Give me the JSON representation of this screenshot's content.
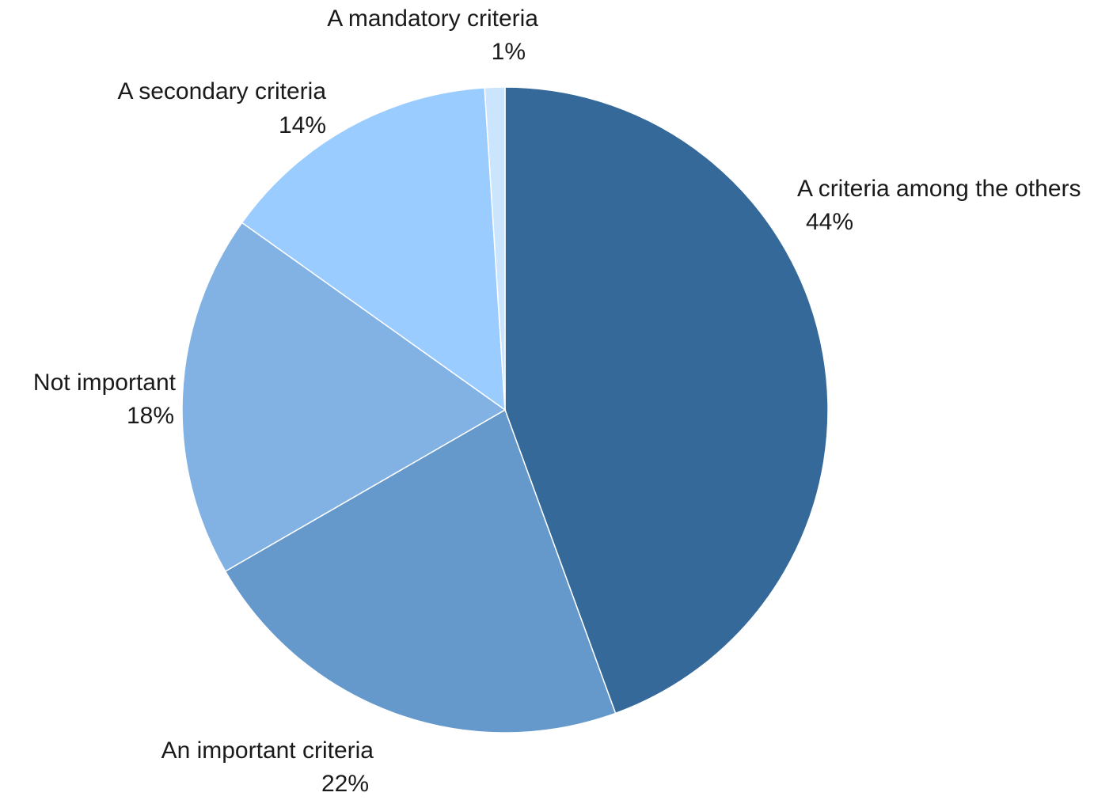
{
  "chart_data": {
    "type": "pie",
    "title": "",
    "slices": [
      {
        "label": "A criteria among the others",
        "value": 44,
        "value_label": "44%",
        "color": "#356999"
      },
      {
        "label": "An important criteria",
        "value": 22,
        "value_label": "22%",
        "color": "#6699CB"
      },
      {
        "label": "Not important",
        "value": 18,
        "value_label": "18%",
        "color": "#81B2E3"
      },
      {
        "label": "A secondary criteria",
        "value": 14,
        "value_label": "14%",
        "color": "#9ACCFF"
      },
      {
        "label": "A mandatory criteria",
        "value": 1,
        "value_label": "1%",
        "color": "#CCE5FF"
      }
    ],
    "start": "top",
    "direction": "clockwise",
    "legend": "none"
  }
}
